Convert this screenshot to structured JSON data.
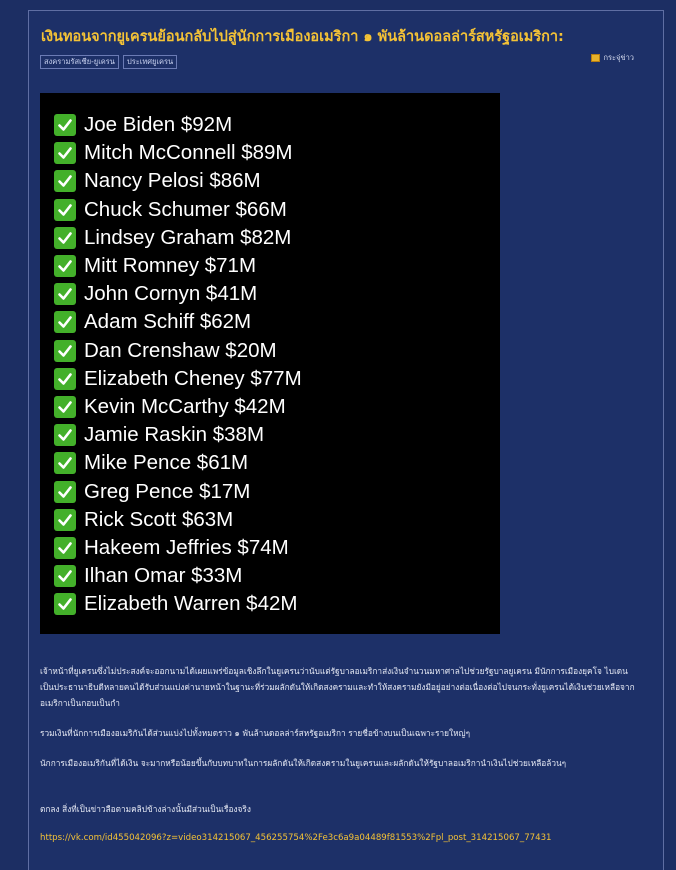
{
  "post": {
    "title": "เงินทอนจากยูเครนย้อนกลับไปสู่นักการเมืองอเมริกา ๑ พันล้านดอลล่าร์สหรัฐอเมริกา:",
    "tags": [
      "สงครามรัสเซีย-ยูเครน",
      "ประเทศยูเครน"
    ],
    "share_label": "กระจุ่ข่าว"
  },
  "list": [
    "Joe Biden $92M",
    "Mitch McConnell $89M",
    "Nancy Pelosi $86M",
    "Chuck Schumer $66M",
    "Lindsey Graham $82M",
    "Mitt Romney $71M",
    "John Cornyn $41M",
    "Adam Schiff $62M",
    "Dan Crenshaw $20M",
    "Elizabeth Cheney $77M",
    "Kevin McCarthy $42M",
    "Jamie Raskin $38M",
    "Mike Pence $61M",
    "Greg Pence $17M",
    "Rick Scott $63M",
    "Hakeem Jeffries $74M",
    "Ilhan Omar $33M",
    "Elizabeth Warren $42M"
  ],
  "paragraphs": [
    "เจ้าหน้าที่ยูเครนซึ่งไม่ประสงค์จะออกนามได้เผยแพร่ข้อมูลเชิงลึกในยูเครนว่านับแต่รัฐบาลอเมริกาส่งเงินจำนวนมหาศาลไปช่วยรัฐบาลยูเครน มีนักการเมืองยุคโจ ไบเดนเป็นประธานาธิบดีหลายคนได้รับส่วนแบ่งค่านายหน้าในฐานะที่ร่วมผลักดันให้เกิดสงครามและทำให้สงครามยังมีอยู่อย่างต่อเนื่องต่อไปจนกระทั่งยูเครนได้เงินช่วยเหลือจากอเมริกาเป็นกอบเป็นกำ",
    "รวมเงินที่นักการเมืองอเมริกันได้ส่วนแบ่งไปทั้งหมดราว ๑ พันล้านดอลล่าร์สหรัฐอเมริกา รายชื่อข้างบนเป็นเฉพาะรายใหญ่ๆ",
    "นักการเมืองอเมริกันที่ได้เงิน จะมากหรือน้อยขึ้นกับบทบาทในการผลักดันให้เกิดสงครามในยูเครนและผลักดันให้รัฐบาลอเมริกานำเงินไปช่วยเหลือล้วนๆ",
    "ตกลง สิ่งที่เป็นข่าวลือตามคลิปข้างล่างนั้นมีส่วนเป็นเรื่องจริง"
  ],
  "link": "https://vk.com/id455042096?z=video314215067_456255754%2Fe3c6a9a04489f81553%2Fpl_post_314215067_77431"
}
